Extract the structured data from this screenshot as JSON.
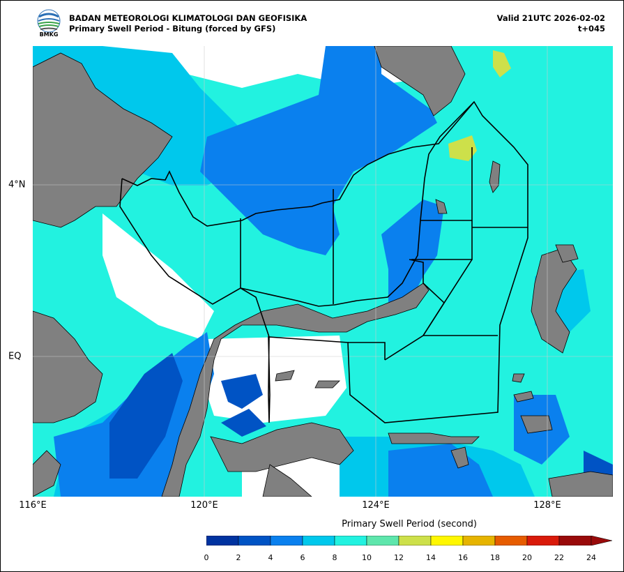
{
  "header": {
    "agency": "BADAN METEOROLOGI KLIMATOLOGI DAN GEOFISIKA",
    "subtitle": "Primary Swell Period - Bitung (forced by GFS)",
    "valid": "Valid 21UTC 2026-02-02",
    "lead": "t+045",
    "logo_text": "BMKG"
  },
  "axes": {
    "lon_labels": [
      "116°E",
      "120°E",
      "124°E",
      "128°E"
    ],
    "lat_labels": [
      "4°N",
      "EQ"
    ],
    "grid": true
  },
  "colorbar": {
    "title": "Primary Swell Period (second)",
    "ticks": [
      "0",
      "2",
      "4",
      "6",
      "8",
      "10",
      "12",
      "14",
      "16",
      "18",
      "20",
      "22",
      "24"
    ],
    "colors": [
      "#0033a0",
      "#0053c4",
      "#0a80ee",
      "#00c8ec",
      "#22f2e0",
      "#5ee6ac",
      "#cde04a",
      "#fff700",
      "#e6b400",
      "#e65c00",
      "#d91a0a",
      "#990a0a"
    ],
    "extend": "max"
  },
  "map_colors": {
    "land": "#808080",
    "no_data": "#ffffff",
    "coastline": "#000000",
    "zone_border": "#000000"
  }
}
